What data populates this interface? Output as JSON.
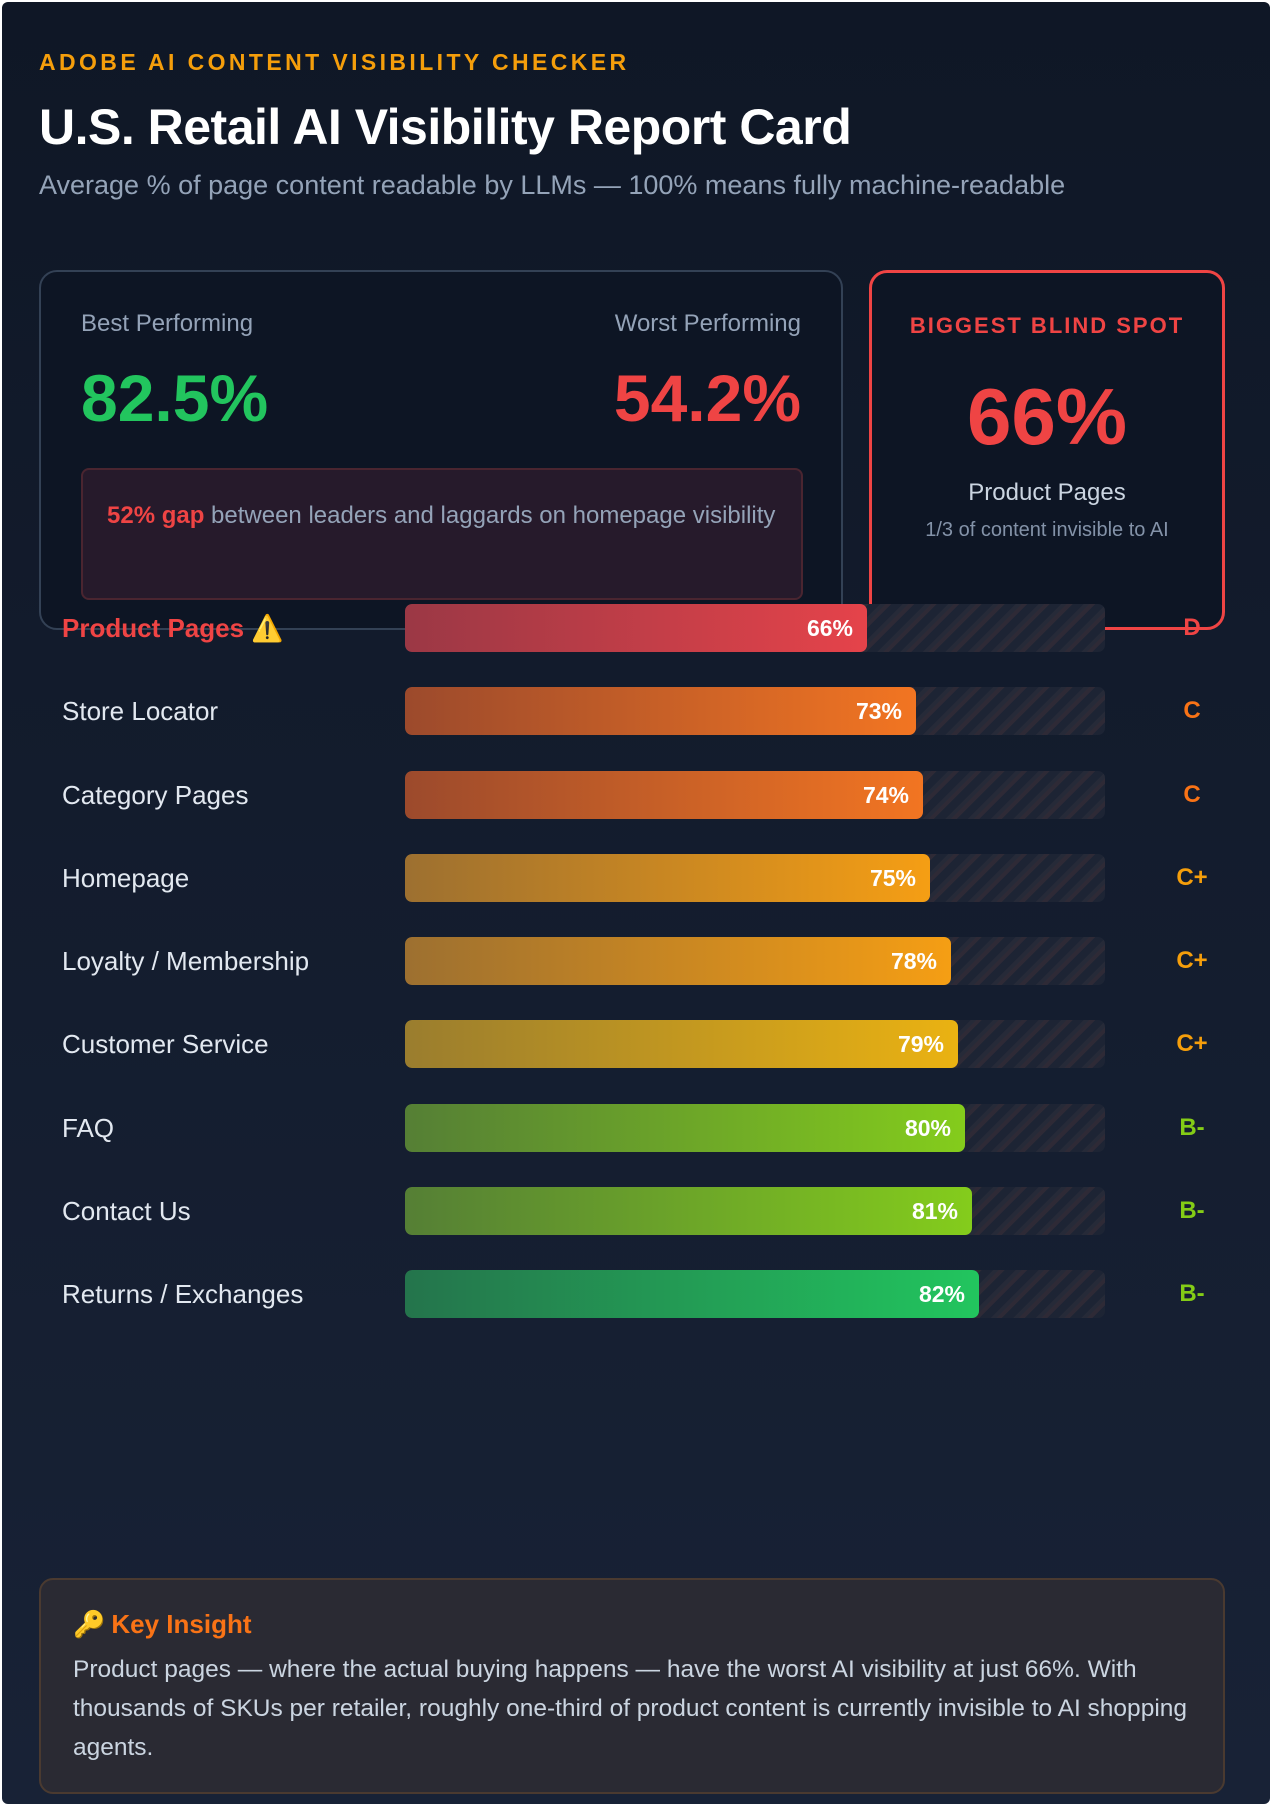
{
  "header": {
    "kicker": "ADOBE AI CONTENT VISIBILITY CHECKER",
    "title": "U.S. Retail AI Visibility Report Card",
    "subtitle": "Average % of page content readable by LLMs — 100% means fully machine-readable"
  },
  "compare": {
    "best_label": "Best Performing",
    "best_value": "82.5%",
    "worst_label": "Worst Performing",
    "worst_value": "54.2%",
    "gap_strong": "52% gap",
    "gap_text": " between leaders and laggards on homepage visibility"
  },
  "blind_spot": {
    "label": "BIGGEST BLIND SPOT",
    "value": "66%",
    "page": "Product Pages",
    "note": "1/3 of content invisible to AI"
  },
  "chart_data": {
    "type": "bar",
    "orientation": "horizontal",
    "title": "U.S. Retail AI Visibility Report Card",
    "xlim": [
      0,
      100
    ],
    "unit": "%",
    "categories": [
      "Product Pages ⚠️",
      "Store Locator",
      "Category Pages",
      "Homepage",
      "Loyalty / Membership",
      "Customer Service",
      "FAQ",
      "Contact Us",
      "Returns / Exchanges"
    ],
    "values": [
      66,
      73,
      74,
      75,
      78,
      79,
      80,
      81,
      82
    ],
    "value_labels": [
      "66%",
      "73%",
      "74%",
      "75%",
      "78%",
      "79%",
      "80%",
      "81%",
      "82%"
    ],
    "grades": [
      "D",
      "C",
      "C",
      "C+",
      "C+",
      "C+",
      "B-",
      "B-",
      "B-"
    ],
    "bar_colors": [
      [
        "#9b3845",
        "#e5434a"
      ],
      [
        "#9c4a2c",
        "#f27522"
      ],
      [
        "#9c4a2c",
        "#f27522"
      ],
      [
        "#9d7030",
        "#f59e14"
      ],
      [
        "#9d7030",
        "#f59e14"
      ],
      [
        "#9a7d2e",
        "#eab212"
      ],
      [
        "#557f35",
        "#84cc1c"
      ],
      [
        "#557f35",
        "#84cc1c"
      ],
      [
        "#24744c",
        "#22c55e"
      ]
    ],
    "grade_colors": [
      "#ef4444",
      "#f97316",
      "#f97316",
      "#f59e0b",
      "#f59e0b",
      "#f59e0b",
      "#84cc16",
      "#84cc16",
      "#84cc16"
    ],
    "warn_index": 0
  },
  "insight": {
    "icon": "🔑",
    "heading": "Key Insight",
    "text": "Product pages — where the actual buying happens — have the worst AI visibility at just 66%. With thousands of SKUs per retailer, roughly one-third of product content is currently invisible to AI shopping agents."
  }
}
